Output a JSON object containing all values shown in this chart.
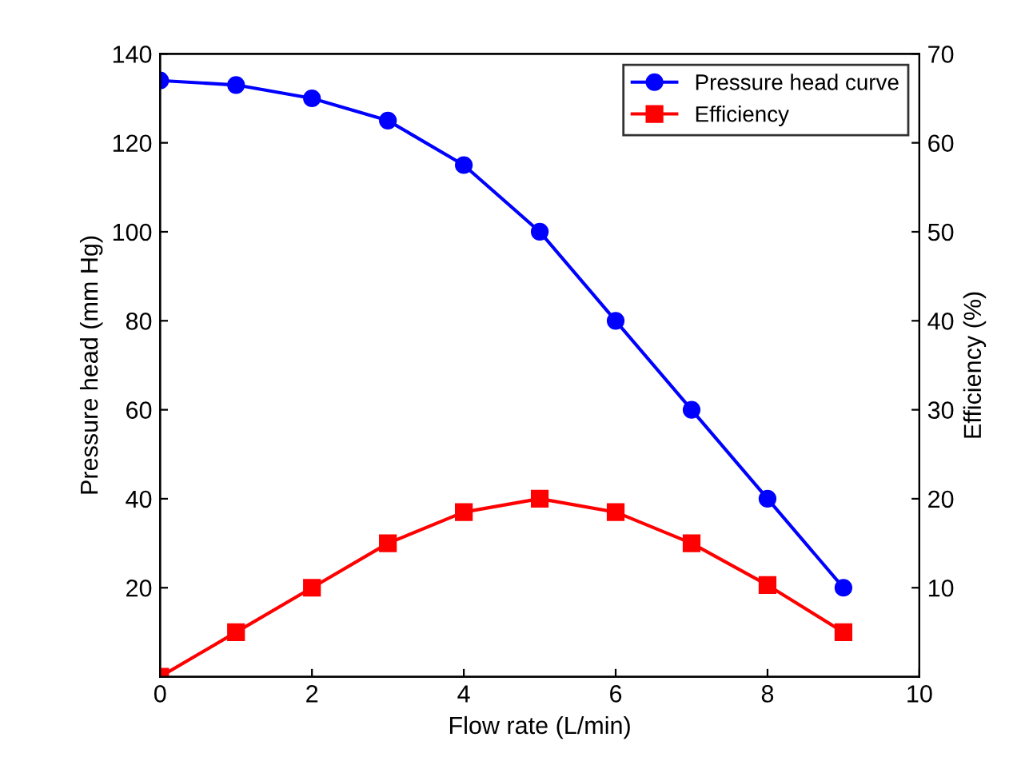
{
  "chart_data": {
    "type": "line",
    "xlabel": "Flow rate (L/min)",
    "ylabel": "Pressure head (mm Hg)",
    "y2label": "Efficiency (%)",
    "x": [
      0,
      1,
      2,
      3,
      4,
      5,
      6,
      7,
      8,
      9
    ],
    "series": [
      {
        "name": "Pressure head curve",
        "color": "#0000ff",
        "marker": "circle",
        "values": [
          134,
          133,
          130,
          125,
          115,
          100,
          80,
          60,
          40,
          20
        ]
      },
      {
        "name": "Efficiency",
        "color": "#ff0000",
        "marker": "square",
        "axis": "y2",
        "values": [
          0,
          5,
          10,
          15,
          18.5,
          20,
          18.5,
          15,
          10.3,
          5
        ]
      }
    ],
    "xlim": [
      0,
      10
    ],
    "xticks": [
      0,
      2,
      4,
      6,
      8,
      10
    ],
    "ylim": [
      0,
      140
    ],
    "yticks": [
      20,
      40,
      60,
      80,
      100,
      120,
      140
    ],
    "y2lim": [
      0,
      70
    ],
    "y2ticks": [
      10,
      20,
      30,
      40,
      50,
      60,
      70
    ],
    "legend": "top right",
    "grid": false,
    "line_style": "solid"
  }
}
